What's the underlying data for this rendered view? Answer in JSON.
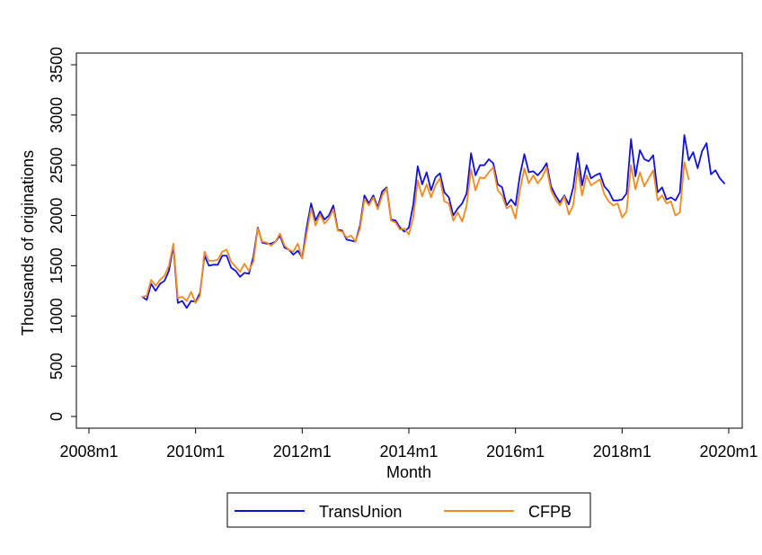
{
  "chart_data": {
    "type": "line",
    "xlabel": "Month",
    "ylabel": "Thousands of originations",
    "xlim": [
      "2008m1",
      "2020m1"
    ],
    "ylim": [
      0,
      3500
    ],
    "x_ticks": [
      "2008m1",
      "2010m1",
      "2012m1",
      "2014m1",
      "2016m1",
      "2018m1",
      "2020m1"
    ],
    "y_ticks": [
      0,
      500,
      1000,
      1500,
      2000,
      2500,
      3000,
      3500
    ],
    "grid": false,
    "legend_position": "bottom",
    "series": [
      {
        "name": "TransUnion",
        "color": "#1010e0",
        "start": "2009m1",
        "values": [
          1190,
          1160,
          1320,
          1250,
          1320,
          1350,
          1450,
          1700,
          1130,
          1150,
          1080,
          1150,
          1140,
          1230,
          1600,
          1500,
          1510,
          1510,
          1600,
          1600,
          1480,
          1450,
          1390,
          1430,
          1420,
          1590,
          1880,
          1730,
          1720,
          1720,
          1740,
          1800,
          1680,
          1660,
          1610,
          1650,
          1580,
          1880,
          2120,
          1950,
          2040,
          1960,
          2000,
          2100,
          1860,
          1850,
          1760,
          1750,
          1740,
          1900,
          2200,
          2120,
          2200,
          2080,
          2240,
          2280,
          1960,
          1950,
          1880,
          1840,
          1880,
          2110,
          2490,
          2310,
          2430,
          2250,
          2380,
          2420,
          2230,
          2180,
          2000,
          2070,
          2120,
          2220,
          2620,
          2400,
          2500,
          2500,
          2560,
          2520,
          2310,
          2280,
          2100,
          2160,
          2100,
          2400,
          2610,
          2430,
          2440,
          2400,
          2450,
          2520,
          2290,
          2200,
          2130,
          2200,
          2110,
          2280,
          2620,
          2300,
          2500,
          2370,
          2400,
          2420,
          2290,
          2240,
          2150,
          2150,
          2160,
          2220,
          2760,
          2390,
          2650,
          2560,
          2540,
          2600,
          2230,
          2280,
          2160,
          2180,
          2150,
          2230,
          2800,
          2550,
          2630,
          2470,
          2640,
          2720,
          2410,
          2450,
          2370,
          2320
        ]
      },
      {
        "name": "CFPB",
        "color": "#f28a1e",
        "start": "2009m1",
        "values": [
          1190,
          1200,
          1360,
          1300,
          1360,
          1400,
          1500,
          1720,
          1180,
          1190,
          1150,
          1240,
          1130,
          1200,
          1640,
          1550,
          1550,
          1560,
          1640,
          1660,
          1540,
          1490,
          1440,
          1520,
          1450,
          1540,
          1870,
          1740,
          1730,
          1700,
          1740,
          1820,
          1700,
          1660,
          1640,
          1720,
          1570,
          1820,
          2070,
          1900,
          2010,
          1920,
          1970,
          2060,
          1850,
          1840,
          1780,
          1800,
          1740,
          1870,
          2160,
          2100,
          2180,
          2060,
          2200,
          2270,
          1950,
          1930,
          1860,
          1870,
          1810,
          1980,
          2350,
          2190,
          2310,
          2180,
          2300,
          2370,
          2140,
          2120,
          1950,
          2030,
          1940,
          2100,
          2460,
          2250,
          2380,
          2370,
          2430,
          2480,
          2250,
          2200,
          2070,
          2100,
          1970,
          2250,
          2470,
          2320,
          2400,
          2320,
          2380,
          2480,
          2250,
          2160,
          2100,
          2190,
          2010,
          2100,
          2470,
          2200,
          2400,
          2300,
          2330,
          2360,
          2210,
          2140,
          2100,
          2120,
          1980,
          2040,
          2500,
          2260,
          2430,
          2290,
          2370,
          2450,
          2150,
          2200,
          2120,
          2140,
          2000,
          2030,
          2530,
          2360
        ]
      }
    ]
  }
}
